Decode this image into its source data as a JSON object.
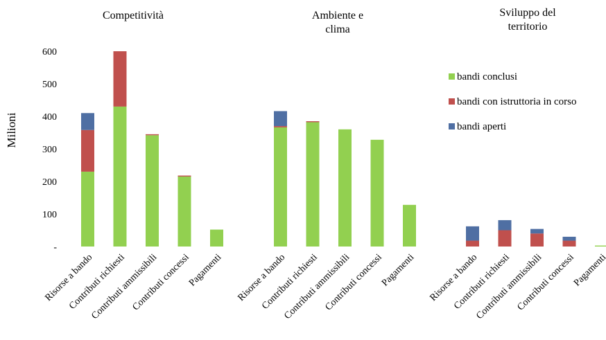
{
  "chart_data": {
    "type": "bar",
    "stacked": true,
    "ylabel": "Milioni",
    "ylim": [
      0,
      600
    ],
    "yticks": [
      "-",
      "100",
      "200",
      "300",
      "400",
      "500",
      "600"
    ],
    "grid": false,
    "legend_position": "right",
    "colors": {
      "bandi conclusi": "#92d050",
      "bandi con istruttoria in corso": "#c0504d",
      "bandi aperti": "#4f6fa3"
    },
    "legend": [
      "bandi conclusi",
      "bandi con istruttoria in corso",
      "bandi aperti"
    ],
    "groups": [
      {
        "title": [
          "Competitività"
        ],
        "categories": [
          "Risorse a bando",
          "Contributi richiesti",
          "Contributi ammissibili",
          "Contributi concessi",
          "Pagamenti"
        ],
        "series": [
          {
            "name": "bandi conclusi",
            "values": [
              230,
              430,
              342,
              215,
              52
            ]
          },
          {
            "name": "bandi con istruttoria in corso",
            "values": [
              128,
              170,
              3,
              3,
              0
            ]
          },
          {
            "name": "bandi aperti",
            "values": [
              52,
              0,
              0,
              0,
              0
            ]
          }
        ]
      },
      {
        "title": [
          "Ambiente e",
          "clima"
        ],
        "categories": [
          "Risorse a bando",
          "Contributi richiesti",
          "Contributi ammissibili",
          "Contributi concessi",
          "Pagamenti"
        ],
        "series": [
          {
            "name": "bandi conclusi",
            "values": [
              366,
              382,
              360,
              328,
              128
            ]
          },
          {
            "name": "bandi con istruttoria in corso",
            "values": [
              4,
              3,
              0,
              0,
              0
            ]
          },
          {
            "name": "bandi aperti",
            "values": [
              46,
              0,
              0,
              0,
              0
            ]
          }
        ]
      },
      {
        "title": [
          "Sviluppo del",
          "territorio"
        ],
        "categories": [
          "Risorse a bando",
          "Contributi richiesti",
          "Contributi ammissibili",
          "Contributi concessi",
          "Pagamenti"
        ],
        "series": [
          {
            "name": "bandi conclusi",
            "values": [
              0,
              0,
              0,
              0,
              3
            ]
          },
          {
            "name": "bandi con istruttoria in corso",
            "values": [
              18,
              50,
              40,
              18,
              0
            ]
          },
          {
            "name": "bandi aperti",
            "values": [
              44,
              31,
              14,
              12,
              0
            ]
          }
        ]
      }
    ]
  }
}
